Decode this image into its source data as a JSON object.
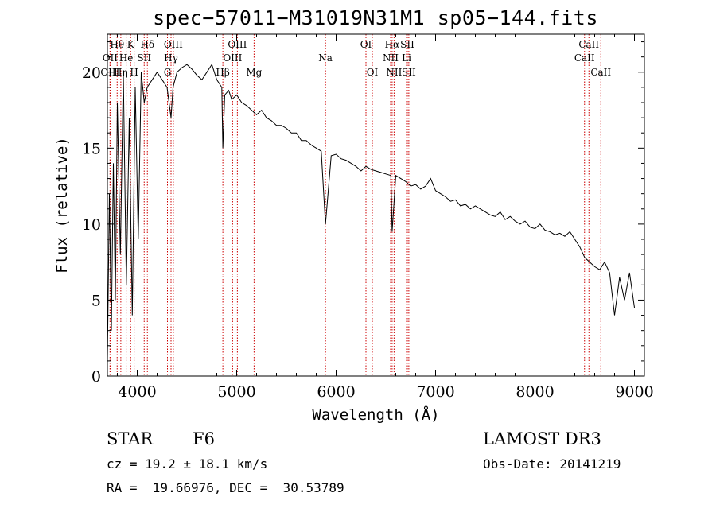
{
  "chart_data": {
    "type": "line",
    "title": "spec−57011−M31019N31M1_sp05−144.fits",
    "xlabel": "Wavelength (Å)",
    "ylabel": "Flux (relative)",
    "xlim": [
      3700,
      9100
    ],
    "ylim": [
      0,
      22.5
    ],
    "xticks": [
      4000,
      5000,
      6000,
      7000,
      8000,
      9000
    ],
    "yticks": [
      0,
      5,
      10,
      15,
      20
    ],
    "line_color": "#000000",
    "marker_color": "#cc0000",
    "spectrum": {
      "x": [
        3700,
        3720,
        3740,
        3760,
        3780,
        3800,
        3830,
        3860,
        3890,
        3920,
        3950,
        3980,
        4010,
        4040,
        4070,
        4100,
        4150,
        4200,
        4250,
        4300,
        4340,
        4360,
        4400,
        4450,
        4500,
        4550,
        4600,
        4650,
        4700,
        4750,
        4800,
        4850,
        4861,
        4880,
        4920,
        4950,
        5000,
        5050,
        5100,
        5150,
        5200,
        5250,
        5300,
        5350,
        5400,
        5450,
        5500,
        5550,
        5600,
        5650,
        5700,
        5750,
        5800,
        5850,
        5893,
        5950,
        6000,
        6050,
        6100,
        6150,
        6200,
        6250,
        6300,
        6350,
        6400,
        6450,
        6500,
        6550,
        6563,
        6600,
        6650,
        6700,
        6750,
        6800,
        6850,
        6900,
        6950,
        7000,
        7050,
        7100,
        7150,
        7200,
        7250,
        7300,
        7350,
        7400,
        7450,
        7500,
        7550,
        7600,
        7650,
        7700,
        7750,
        7800,
        7850,
        7900,
        7950,
        8000,
        8050,
        8100,
        8150,
        8200,
        8250,
        8300,
        8350,
        8400,
        8450,
        8500,
        8550,
        8600,
        8650,
        8700,
        8750,
        8800,
        8850,
        8900,
        8950,
        9000
      ],
      "y": [
        1,
        12,
        3,
        14,
        5,
        18,
        8,
        20,
        6,
        17,
        4,
        19,
        9,
        20,
        18,
        19,
        19.5,
        20,
        19.5,
        19,
        17,
        19,
        20,
        20.3,
        20.5,
        20.2,
        19.8,
        19.5,
        20,
        20.5,
        19.5,
        19,
        15,
        18.5,
        18.8,
        18.2,
        18.5,
        18,
        17.8,
        17.5,
        17.2,
        17.5,
        17,
        16.8,
        16.5,
        16.5,
        16.3,
        16,
        16,
        15.5,
        15.5,
        15.2,
        15,
        14.8,
        10,
        14.5,
        14.6,
        14.3,
        14.2,
        14,
        13.8,
        13.5,
        13.8,
        13.6,
        13.5,
        13.4,
        13.3,
        13.2,
        9.5,
        13.2,
        13,
        12.8,
        12.5,
        12.6,
        12.3,
        12.5,
        13,
        12.2,
        12,
        11.8,
        11.5,
        11.6,
        11.2,
        11.3,
        11,
        11.2,
        11,
        10.8,
        10.6,
        10.5,
        10.8,
        10.3,
        10.5,
        10.2,
        10,
        10.2,
        9.8,
        9.7,
        10,
        9.6,
        9.5,
        9.3,
        9.4,
        9.2,
        9.5,
        9,
        8.5,
        7.8,
        7.5,
        7.2,
        7,
        7.5,
        6.8,
        4,
        6.5,
        5,
        6.8,
        4.5
      ]
    },
    "lines": [
      {
        "label": "Hθ",
        "wavelength": 3798,
        "row": 1
      },
      {
        "label": "OII",
        "wavelength": 3727,
        "row": 2
      },
      {
        "label": "OIII",
        "wavelength": 3727,
        "row": 3
      },
      {
        "label": "K",
        "wavelength": 3934,
        "row": 1
      },
      {
        "label": "He",
        "wavelength": 3889,
        "row": 2
      },
      {
        "label": "Hη",
        "wavelength": 3835,
        "row": 3
      },
      {
        "label": "Hδ",
        "wavelength": 4102,
        "row": 1
      },
      {
        "label": "SII",
        "wavelength": 4070,
        "row": 2
      },
      {
        "label": "H",
        "wavelength": 3969,
        "row": 3
      },
      {
        "label": "OIII",
        "wavelength": 4363,
        "row": 1
      },
      {
        "label": "Hγ",
        "wavelength": 4340,
        "row": 2
      },
      {
        "label": "G",
        "wavelength": 4304,
        "row": 3
      },
      {
        "label": "Hβ",
        "wavelength": 4861,
        "row": 3
      },
      {
        "label": "OIII",
        "wavelength": 5007,
        "row": 1
      },
      {
        "label": "OIII",
        "wavelength": 4959,
        "row": 2
      },
      {
        "label": "Mg",
        "wavelength": 5175,
        "row": 3
      },
      {
        "label": "Na",
        "wavelength": 5893,
        "row": 2
      },
      {
        "label": "OI",
        "wavelength": 6300,
        "row": 1
      },
      {
        "label": "OI",
        "wavelength": 6364,
        "row": 3
      },
      {
        "label": "Hα",
        "wavelength": 6563,
        "row": 1
      },
      {
        "label": "SII",
        "wavelength": 6716,
        "row": 1
      },
      {
        "label": "NII",
        "wavelength": 6548,
        "row": 2
      },
      {
        "label": "Li",
        "wavelength": 6708,
        "row": 2
      },
      {
        "label": "NII",
        "wavelength": 6583,
        "row": 3
      },
      {
        "label": "SII",
        "wavelength": 6731,
        "row": 3
      },
      {
        "label": "CaII",
        "wavelength": 8542,
        "row": 1
      },
      {
        "label": "CaII",
        "wavelength": 8498,
        "row": 2
      },
      {
        "label": "CaII",
        "wavelength": 8662,
        "row": 3
      }
    ]
  },
  "info": {
    "object_class": "STAR",
    "subclass": "F6",
    "survey": "LAMOST DR3",
    "cz": "cz = 19.2 ± 18.1 km/s",
    "obs_date": "Obs-Date: 20141219",
    "coords": "RA =  19.66976, DEC =  30.53789"
  }
}
